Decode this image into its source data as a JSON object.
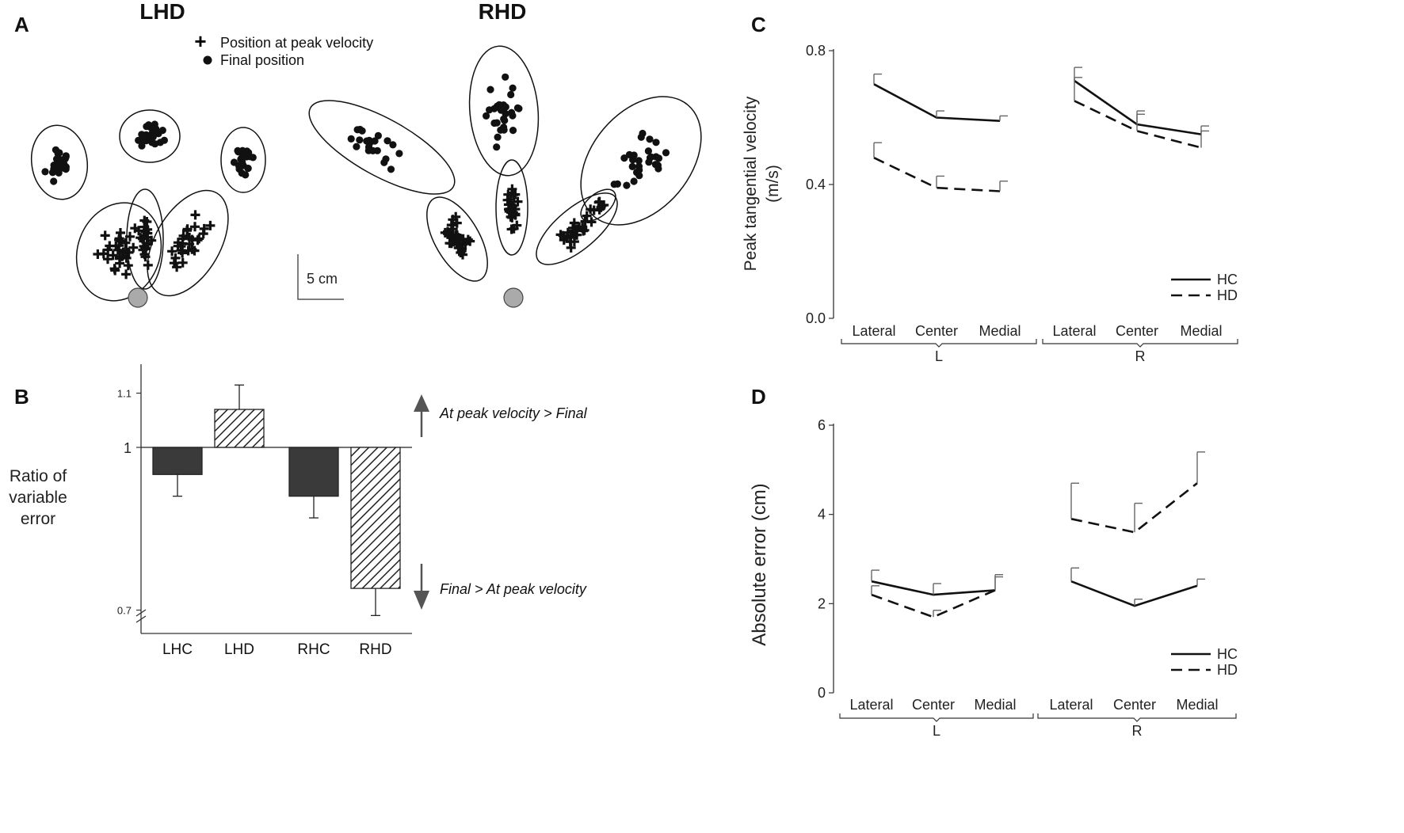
{
  "panels": {
    "a": {
      "letter": "A",
      "left_title": "LHD",
      "right_title": "RHD",
      "legend": {
        "peak": "Position at peak velocity",
        "final": "Final position"
      },
      "scale_bar": "5 cm"
    },
    "b": {
      "letter": "B"
    },
    "c": {
      "letter": "C"
    },
    "d": {
      "letter": "D"
    }
  },
  "chart_data": [
    {
      "type": "bar",
      "panel": "B",
      "ylabel": [
        "Ratio of",
        "variable",
        "error"
      ],
      "categories": [
        "LHC",
        "LHD",
        "RHC",
        "RHD"
      ],
      "values": [
        0.95,
        1.07,
        0.91,
        0.74
      ],
      "error_bars": [
        0.04,
        0.045,
        0.04,
        0.05
      ],
      "fills": [
        "dark",
        "hatched",
        "dark",
        "hatched"
      ],
      "baseline": 1,
      "ylim": [
        0.7,
        1.1
      ],
      "yticks": [
        {
          "value": 0.7,
          "label": "0.7"
        },
        {
          "value": 1,
          "label": "1"
        },
        {
          "value": 1.1,
          "label": "1.1"
        }
      ],
      "annotations": {
        "up": "At peak velocity > Final",
        "down": "Final > At peak velocity"
      }
    },
    {
      "type": "line",
      "panel": "C",
      "ylabel": [
        "Peak tangential velocity",
        "(m/s)"
      ],
      "ylim": [
        0.0,
        0.8
      ],
      "yticks": [
        "0.0",
        "0.4",
        "0.8"
      ],
      "groups": [
        {
          "name": "L",
          "categories": [
            "Lateral",
            "Center",
            "Medial"
          ]
        },
        {
          "name": "R",
          "categories": [
            "Lateral",
            "Center",
            "Medial"
          ]
        }
      ],
      "series": [
        {
          "name": "HC",
          "style": "solid",
          "values": [
            [
              0.7,
              0.6,
              0.59
            ],
            [
              0.71,
              0.58,
              0.55
            ]
          ],
          "errors": [
            [
              0.03,
              0.02,
              0.015
            ],
            [
              0.04,
              0.03,
              0.025
            ]
          ]
        },
        {
          "name": "HD",
          "style": "dashed",
          "values": [
            [
              0.48,
              0.39,
              0.38
            ],
            [
              0.65,
              0.56,
              0.51
            ]
          ],
          "errors": [
            [
              0.045,
              0.035,
              0.03
            ],
            [
              0.07,
              0.06,
              0.05
            ]
          ]
        }
      ],
      "legend_position": "bottom-right"
    },
    {
      "type": "line",
      "panel": "D",
      "ylabel": [
        "Absolute error (cm)"
      ],
      "ylim": [
        0,
        6
      ],
      "yticks": [
        "0",
        "2",
        "4",
        "6"
      ],
      "groups": [
        {
          "name": "L",
          "categories": [
            "Lateral",
            "Center",
            "Medial"
          ]
        },
        {
          "name": "R",
          "categories": [
            "Lateral",
            "Center",
            "Medial"
          ]
        }
      ],
      "series": [
        {
          "name": "HC",
          "style": "solid",
          "values": [
            [
              2.5,
              2.2,
              2.3
            ],
            [
              2.5,
              1.95,
              2.4
            ]
          ],
          "errors": [
            [
              0.25,
              0.25,
              0.3
            ],
            [
              0.3,
              0.15,
              0.15
            ]
          ]
        },
        {
          "name": "HD",
          "style": "dashed",
          "values": [
            [
              2.2,
              1.7,
              2.3
            ],
            [
              3.9,
              3.6,
              4.7
            ]
          ],
          "errors": [
            [
              0.2,
              0.15,
              0.35
            ],
            [
              0.8,
              0.65,
              0.7
            ]
          ]
        }
      ],
      "legend_position": "bottom-right"
    }
  ]
}
